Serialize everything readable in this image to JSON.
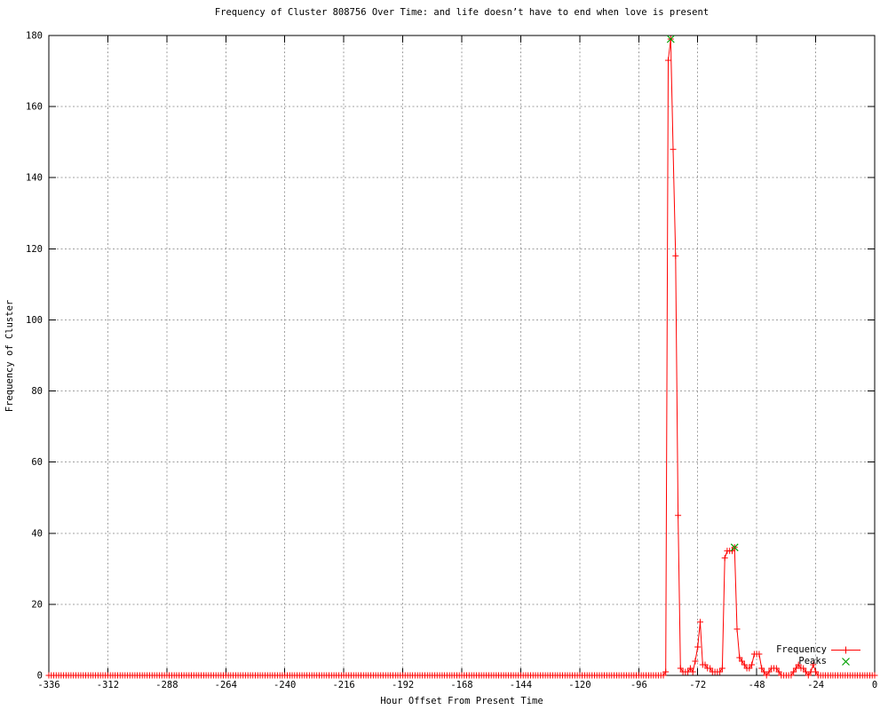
{
  "chart_data": {
    "type": "line",
    "title": "Frequency of Cluster 808756 Over Time: and life doesn’t have to end when love is present",
    "xlabel": "Hour Offset From Present Time",
    "ylabel": "Frequency of Cluster",
    "xlim": [
      -336,
      0
    ],
    "ylim": [
      0,
      180
    ],
    "x_step_hours": 1,
    "xticks": [
      -336,
      -312,
      -288,
      -264,
      -240,
      -216,
      -192,
      -168,
      -144,
      -120,
      -96,
      -72,
      -48,
      -24,
      0
    ],
    "yticks": [
      0,
      20,
      40,
      60,
      80,
      100,
      120,
      140,
      160,
      180
    ],
    "grid": true,
    "grid_color": "#a0a0a0",
    "border_color": "#000000",
    "legend_position": "bottom-right-inside",
    "series": [
      {
        "name": "Frequency",
        "color": "#ff0000",
        "marker": "plus",
        "default_value": 0,
        "note": "hourly values; every hour from -336 to 0 not listed below equals 0",
        "nonzero_points": {
          "-85": 1,
          "-84": 173,
          "-83": 179,
          "-82": 148,
          "-81": 118,
          "-80": 45,
          "-79": 2,
          "-78": 1,
          "-77": 1,
          "-76": 1,
          "-75": 2,
          "-74": 1,
          "-73": 4,
          "-72": 8,
          "-71": 15,
          "-70": 3,
          "-69": 3,
          "-68": 2,
          "-67": 2,
          "-66": 1,
          "-65": 1,
          "-64": 1,
          "-63": 1,
          "-62": 2,
          "-61": 33,
          "-60": 35,
          "-59": 35,
          "-58": 35,
          "-57": 36,
          "-56": 13,
          "-55": 5,
          "-54": 4,
          "-53": 3,
          "-52": 2,
          "-51": 2,
          "-50": 3,
          "-49": 6,
          "-48": 6,
          "-47": 6,
          "-46": 2,
          "-45": 1,
          "-43": 1,
          "-42": 2,
          "-41": 2,
          "-40": 2,
          "-39": 1,
          "-33": 1,
          "-32": 2,
          "-31": 3,
          "-30": 2,
          "-29": 2,
          "-28": 1,
          "-26": 1,
          "-25": 3,
          "-24": 1
        }
      },
      {
        "name": "Peaks",
        "color": "#00a000",
        "marker": "x",
        "points": [
          {
            "x": -83,
            "y": 179
          },
          {
            "x": -57,
            "y": 36
          }
        ]
      }
    ]
  }
}
